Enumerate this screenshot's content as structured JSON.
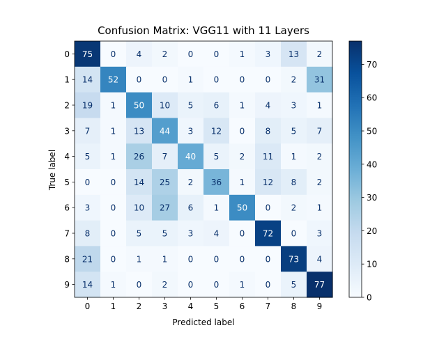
{
  "chart_data": {
    "type": "heatmap",
    "title": "Confusion Matrix: VGG11 with 11 Layers",
    "xlabel": "Predicted label",
    "ylabel": "True label",
    "x_categories": [
      "0",
      "1",
      "2",
      "3",
      "4",
      "5",
      "6",
      "7",
      "8",
      "9"
    ],
    "y_categories": [
      "0",
      "1",
      "2",
      "3",
      "4",
      "5",
      "6",
      "7",
      "8",
      "9"
    ],
    "matrix": [
      [
        75,
        0,
        4,
        2,
        0,
        0,
        1,
        3,
        13,
        2
      ],
      [
        14,
        52,
        0,
        0,
        1,
        0,
        0,
        0,
        2,
        31
      ],
      [
        19,
        1,
        50,
        10,
        5,
        6,
        1,
        4,
        3,
        1
      ],
      [
        7,
        1,
        13,
        44,
        3,
        12,
        0,
        8,
        5,
        7
      ],
      [
        5,
        1,
        26,
        7,
        40,
        5,
        2,
        11,
        1,
        2
      ],
      [
        0,
        0,
        14,
        25,
        2,
        36,
        1,
        12,
        8,
        2
      ],
      [
        3,
        0,
        10,
        27,
        6,
        1,
        50,
        0,
        2,
        1
      ],
      [
        8,
        0,
        5,
        5,
        3,
        4,
        0,
        72,
        0,
        3
      ],
      [
        21,
        0,
        1,
        1,
        0,
        0,
        0,
        0,
        73,
        4
      ],
      [
        14,
        1,
        0,
        2,
        0,
        0,
        1,
        0,
        5,
        77
      ]
    ],
    "colormap": "Blues",
    "value_range": [
      0,
      77
    ],
    "colorbar_ticks": [
      "0",
      "10",
      "20",
      "30",
      "40",
      "50",
      "60",
      "70"
    ],
    "grid": false
  }
}
